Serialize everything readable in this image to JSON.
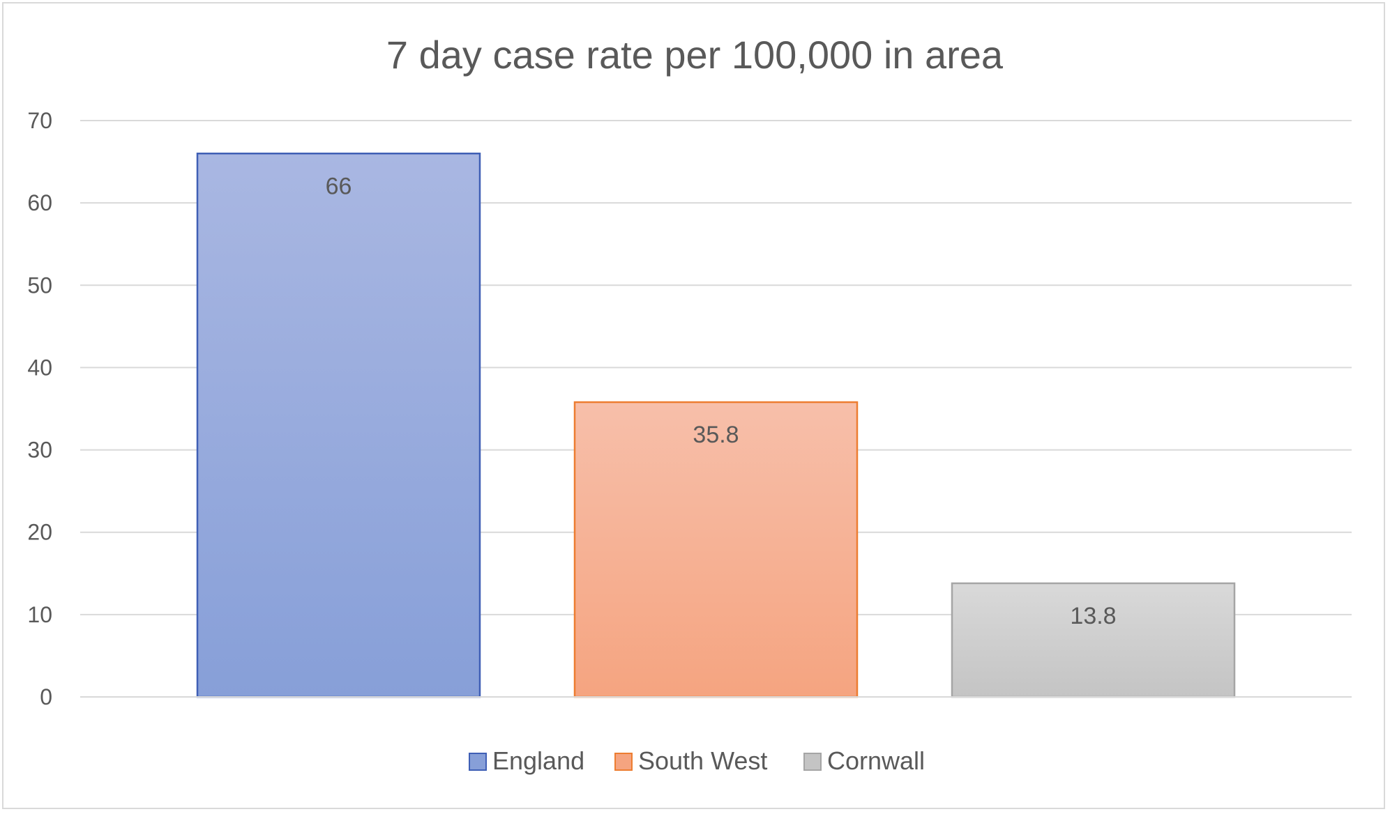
{
  "chart_data": {
    "type": "bar",
    "title": "7 day case rate per 100,000 in area",
    "categories": [
      "England",
      "South West",
      "Cornwall"
    ],
    "values": [
      66,
      35.8,
      13.8
    ],
    "data_labels": [
      "66",
      "35.8",
      "13.8"
    ],
    "ylim": [
      0,
      70
    ],
    "yticks": [
      0,
      10,
      20,
      30,
      40,
      50,
      60,
      70
    ],
    "grid": true,
    "legend_position": "bottom",
    "series_colors": {
      "England": {
        "fill_top": "#a9b7e2",
        "fill_bottom": "#879fd8",
        "stroke": "#3f5fb5"
      },
      "South West": {
        "fill_top": "#f7bfaa",
        "fill_bottom": "#f5a480",
        "stroke": "#ed7d31"
      },
      "Cornwall": {
        "fill_top": "#d9d9d9",
        "fill_bottom": "#c4c4c4",
        "stroke": "#a5a5a5"
      }
    },
    "legend": [
      "England",
      "South West",
      "Cornwall"
    ]
  }
}
